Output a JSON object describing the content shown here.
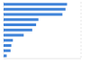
{
  "chart_data": {
    "type": "bar",
    "orientation": "horizontal",
    "categories": [
      null,
      null,
      null,
      null,
      null,
      null,
      null,
      null,
      null,
      null,
      null
    ],
    "values": [
      82,
      80,
      76,
      45,
      42,
      37,
      26,
      12,
      10,
      9,
      4
    ],
    "color": "#3f83d9",
    "xlim": [
      0,
      100
    ],
    "xticks": [
      0,
      25,
      50,
      75,
      100
    ],
    "grid": true,
    "tick_labels": false
  }
}
